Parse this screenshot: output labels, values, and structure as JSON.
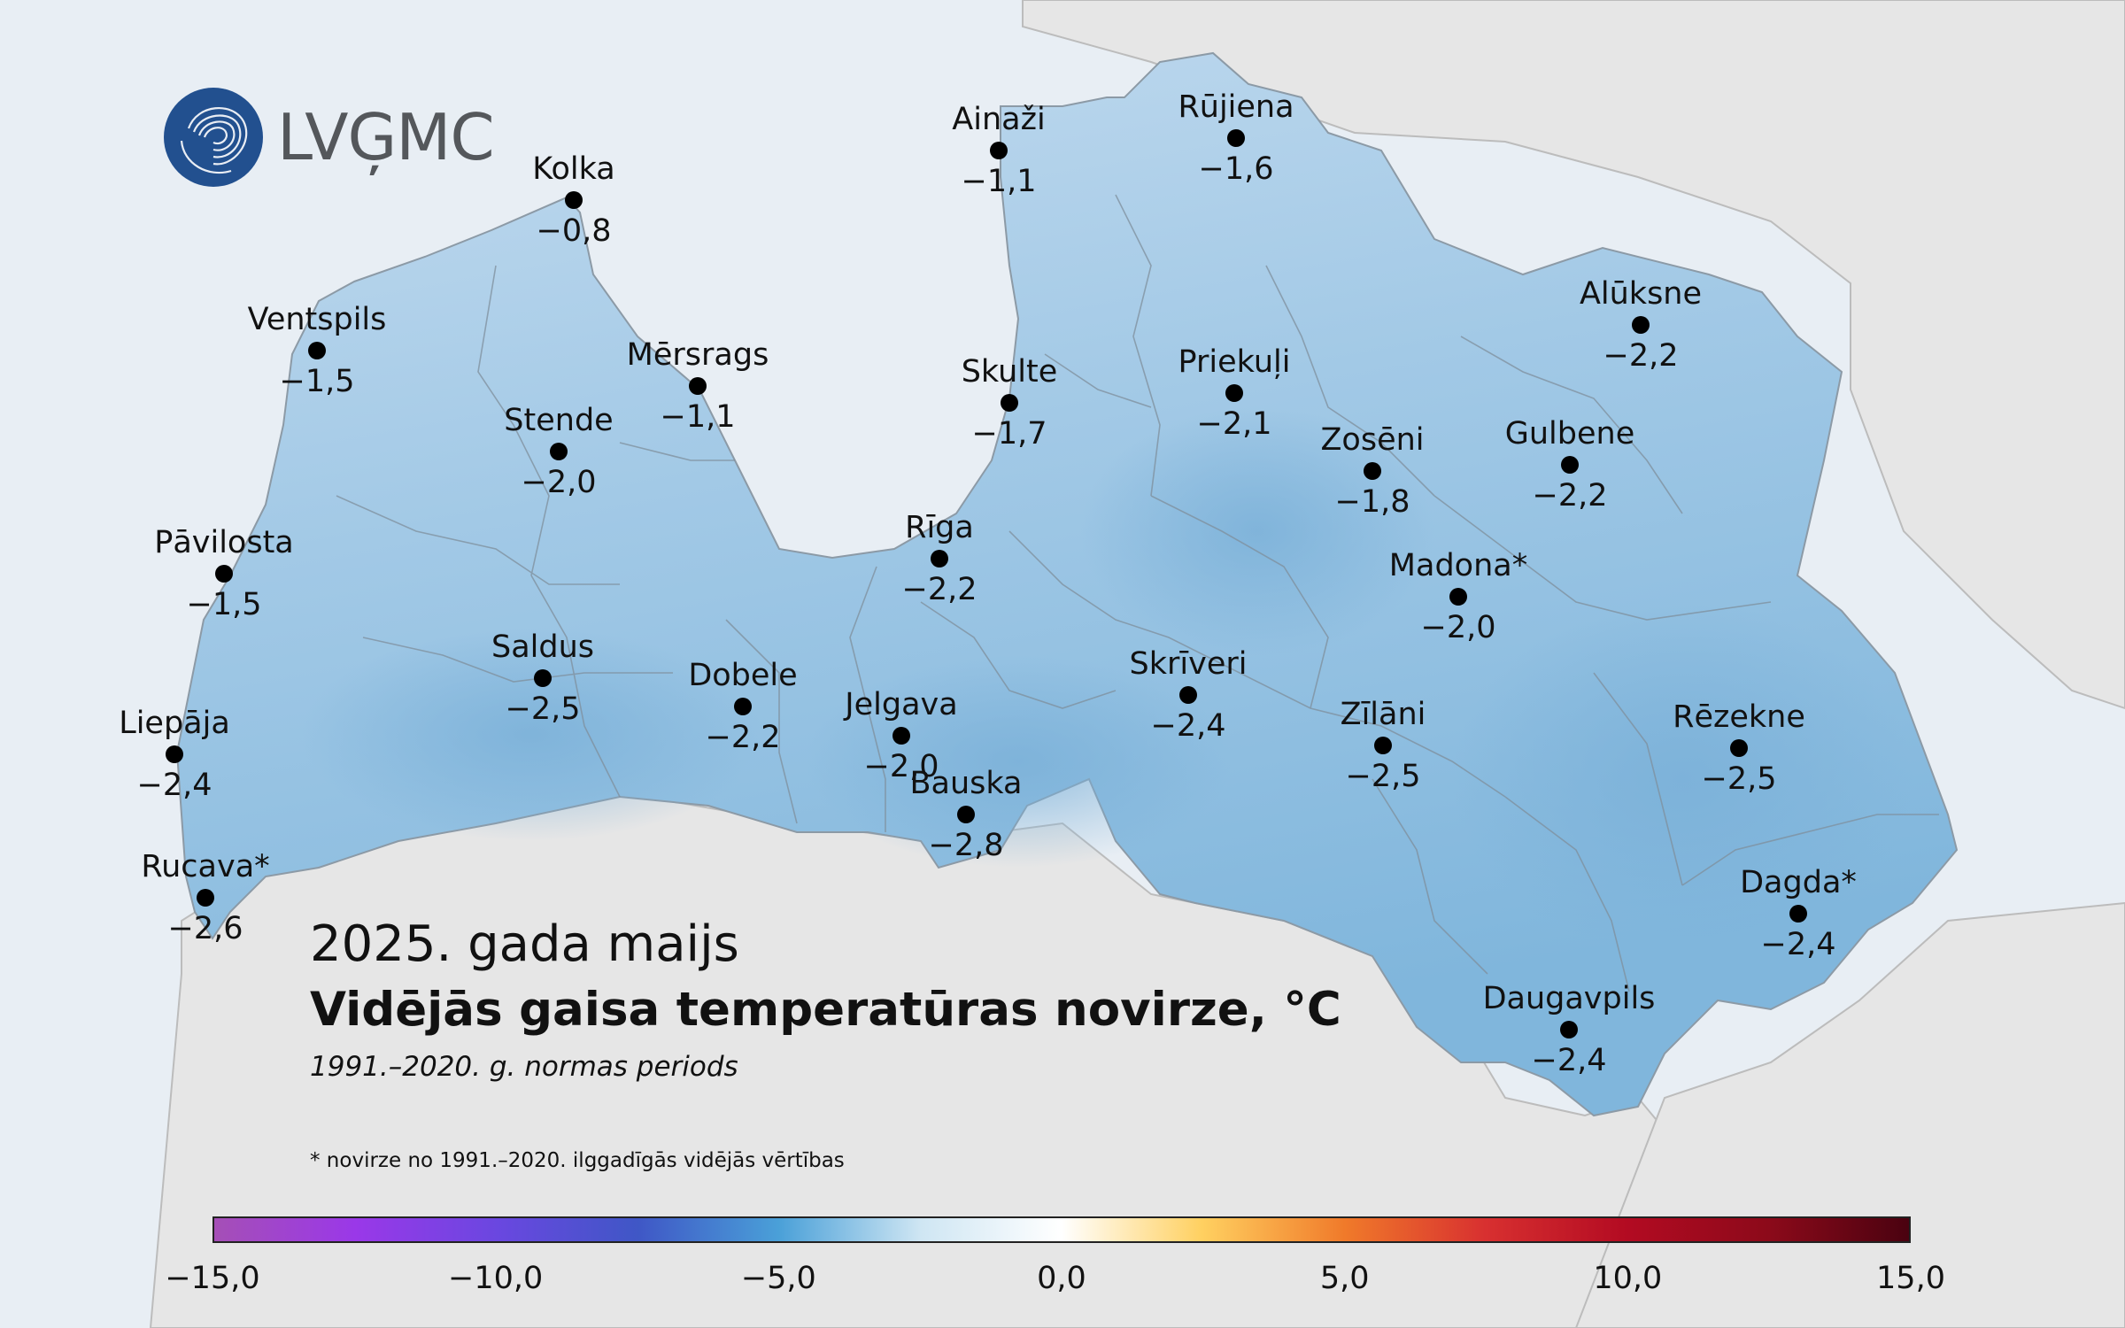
{
  "logo": {
    "text": "LVĢMC"
  },
  "title": {
    "date": "2025. gada maijs",
    "main": "Vidējās gaisa temperatūras novirze, °C",
    "period": "1991.–2020. g. normas periods"
  },
  "footnote": "* novirze no 1991.–2020. ilggadīgās vidējās vērtības",
  "colors": {
    "land": "#9ec8e4",
    "water": "#e8eef4",
    "neighbors": "#e6e6e6",
    "dot": "#000000"
  },
  "stations": [
    {
      "name": "Kolka",
      "value": "−0,8"
    },
    {
      "name": "Ainaži",
      "value": "−1,1"
    },
    {
      "name": "Rūjiena",
      "value": "−1,6"
    },
    {
      "name": "Ventspils",
      "value": "−1,5"
    },
    {
      "name": "Mērsrags",
      "value": "−1,1"
    },
    {
      "name": "Skulte",
      "value": "−1,7"
    },
    {
      "name": "Priekuļi",
      "value": "−2,1"
    },
    {
      "name": "Alūksne",
      "value": "−2,2"
    },
    {
      "name": "Stende",
      "value": "−2,0"
    },
    {
      "name": "Zosēni",
      "value": "−1,8"
    },
    {
      "name": "Gulbene",
      "value": "−2,2"
    },
    {
      "name": "Pāvilosta",
      "value": "−1,5"
    },
    {
      "name": "Rīga",
      "value": "−2,2"
    },
    {
      "name": "Madona*",
      "value": "−2,0"
    },
    {
      "name": "Saldus",
      "value": "−2,5"
    },
    {
      "name": "Dobele",
      "value": "−2,2"
    },
    {
      "name": "Skrīveri",
      "value": "−2,4"
    },
    {
      "name": "Jelgava",
      "value": "−2,0"
    },
    {
      "name": "Zīlāni",
      "value": "−2,5"
    },
    {
      "name": "Rēzekne",
      "value": "−2,5"
    },
    {
      "name": "Liepāja",
      "value": "−2,4"
    },
    {
      "name": "Bauska",
      "value": "−2,8"
    },
    {
      "name": "Rucava*",
      "value": "−2,6"
    },
    {
      "name": "Dagda*",
      "value": "−2,4"
    },
    {
      "name": "Daugavpils",
      "value": "−2,4"
    }
  ],
  "colorbar": {
    "ticks": [
      "−15,0",
      "−10,0",
      "−5,0",
      "0,0",
      "5,0",
      "10,0",
      "15,0"
    ],
    "stops": [
      "#a54fb6",
      "#9a38e8",
      "#6a47e0",
      "#3f57c6",
      "#4aa0d8",
      "#cfe6f3",
      "#ffffff",
      "#ffd060",
      "#f07a2a",
      "#d83030",
      "#b30b22",
      "#8c0a1a",
      "#4a0210"
    ]
  }
}
